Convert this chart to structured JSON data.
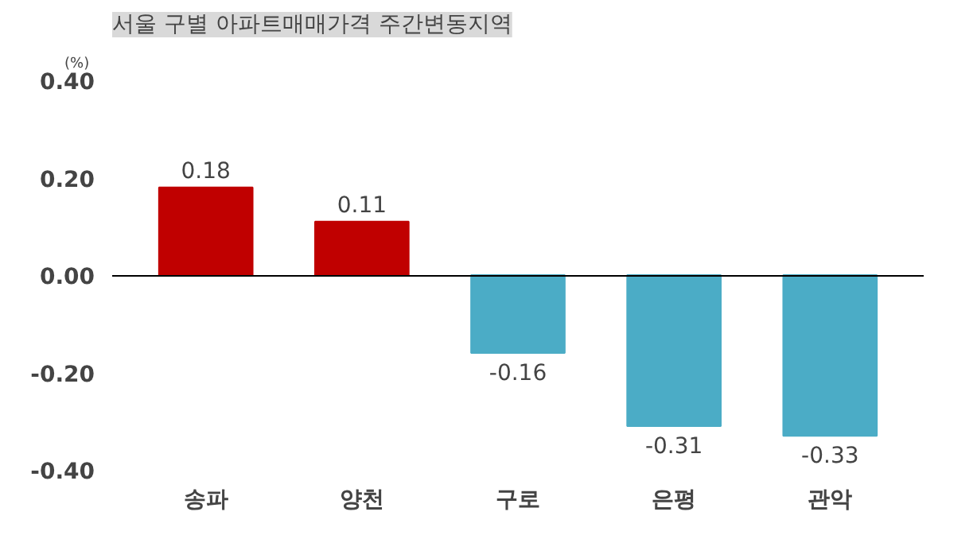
{
  "chart_data": {
    "type": "bar",
    "title": "서울 구별 아파트매매가격 주간변동지역",
    "ylabel": "(%)",
    "categories": [
      "송파",
      "양천",
      "구로",
      "은평",
      "관악"
    ],
    "values": [
      0.18,
      0.11,
      -0.16,
      -0.31,
      -0.33
    ],
    "colors": [
      "#c00000",
      "#c00000",
      "#4bacc6",
      "#4bacc6",
      "#4bacc6"
    ],
    "ylim": [
      -0.4,
      0.4
    ],
    "yticks": [
      {
        "value": 0.4,
        "label": "0.40"
      },
      {
        "value": 0.2,
        "label": "0.20"
      },
      {
        "value": 0,
        "label": "0.00"
      },
      {
        "value": -0.2,
        "label": "-0.20"
      },
      {
        "value": -0.4,
        "label": "-0.40"
      }
    ],
    "data_labels": true
  }
}
